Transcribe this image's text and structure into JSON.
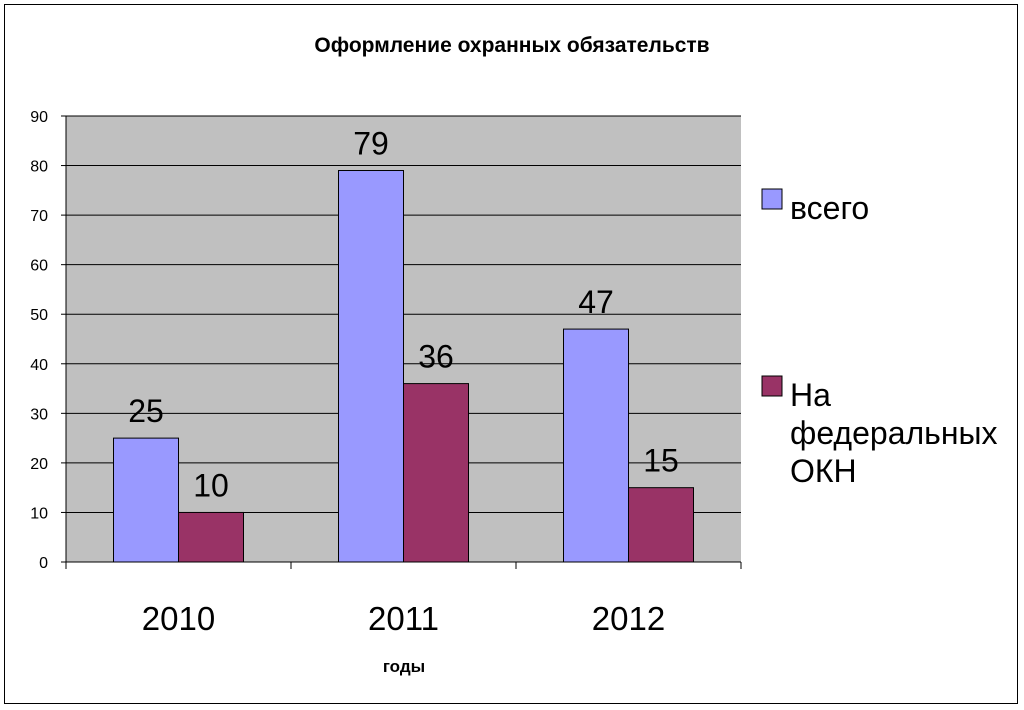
{
  "chart_data": {
    "type": "bar",
    "title": "Оформление охранных обязательств",
    "xlabel": "годы",
    "ylabel": "",
    "categories": [
      "2010",
      "2011",
      "2012"
    ],
    "series": [
      {
        "name": "всего",
        "values": [
          25,
          79,
          47
        ],
        "color": "#9999ff"
      },
      {
        "name": "На федеральных ОКН",
        "values": [
          10,
          36,
          15
        ],
        "color": "#993366"
      }
    ],
    "ylim": [
      0,
      90
    ],
    "yticks": [
      0,
      10,
      20,
      30,
      40,
      50,
      60,
      70,
      80,
      90
    ],
    "grid": true,
    "plot_background": "#c0c0c0",
    "legend_position": "right",
    "legend_lines": [
      [
        "всего"
      ],
      [
        "На",
        "федеральных",
        "ОКН"
      ]
    ]
  }
}
